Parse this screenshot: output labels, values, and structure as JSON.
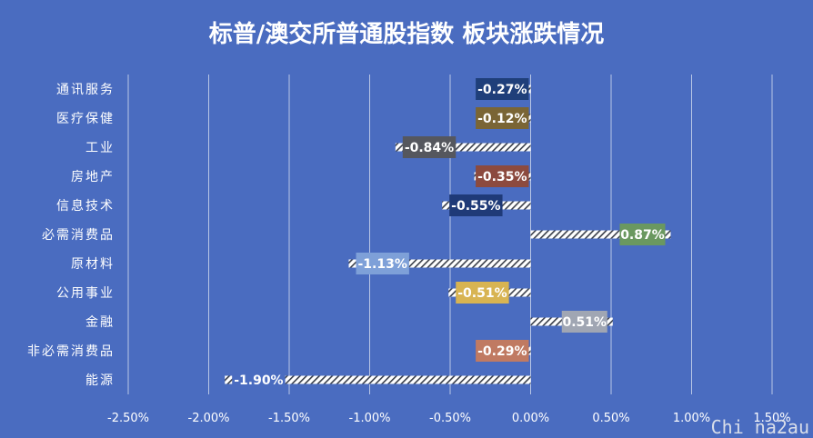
{
  "watermark": "Chi na2au",
  "chart_data": {
    "type": "bar",
    "orientation": "horizontal",
    "title": "标普/澳交所普通股指数 板块涨跌情况",
    "categories": [
      "通讯服务",
      "医疗保健",
      "工业",
      "房地产",
      "信息技术",
      "必需消费品",
      "原材料",
      "公用事业",
      "金融",
      "非必需消费品",
      "能源"
    ],
    "values": [
      -0.27,
      -0.12,
      -0.84,
      -0.35,
      -0.55,
      0.87,
      -1.13,
      -0.51,
      0.51,
      -0.29,
      -1.9
    ],
    "data_labels": [
      "-0.27%",
      "-0.12%",
      "-0.84%",
      "-0.35%",
      "-0.55%",
      "0.87%",
      "-1.13%",
      "-0.51%",
      "0.51%",
      "-0.29%",
      "-1.90%"
    ],
    "label_colors": [
      "#1f3f7a",
      "#7a6535",
      "#55575e",
      "#8c4a3e",
      "#1f3a78",
      "#6a9860",
      "#7ea0d8",
      "#d8b452",
      "#a0a6b3",
      "#c07a62",
      "#4a6cc0"
    ],
    "xlim": [
      -2.5,
      1.5
    ],
    "ticks": [
      -2.5,
      -2.0,
      -1.5,
      -1.0,
      -0.5,
      0.0,
      0.5,
      1.0,
      1.5
    ],
    "tick_labels": [
      "-2.50%",
      "-2.00%",
      "-1.50%",
      "-1.00%",
      "-0.50%",
      "0.00%",
      "0.50%",
      "1.00%",
      "1.50%"
    ],
    "grid": "vertical",
    "bar_color": "#ffffff",
    "background": "#4a6cc0"
  }
}
